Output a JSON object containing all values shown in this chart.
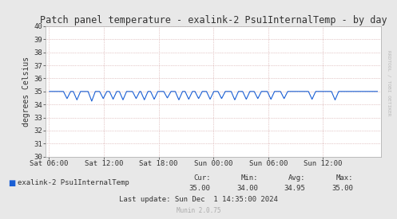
{
  "title": "Patch panel temperature - exalink-2 Psu1InternalTemp - by day",
  "ylabel": "degrees Celsius",
  "ylim": [
    30,
    40
  ],
  "yticks": [
    30,
    31,
    32,
    33,
    34,
    35,
    36,
    37,
    38,
    39,
    40
  ],
  "xlabels": [
    "Sat 06:00",
    "Sat 12:00",
    "Sat 18:00",
    "Sun 00:00",
    "Sun 06:00",
    "Sun 12:00"
  ],
  "line_color": "#1a5fd4",
  "background_color": "#e8e8e8",
  "plot_bg_color": "#ffffff",
  "grid_color_major": "#cc9999",
  "grid_color_minor": "#ddbbbb",
  "legend_label": "exalink-2 Psu1InternalTemp",
  "legend_color": "#1a5fd4",
  "cur": "35.00",
  "min": "34.00",
  "avg": "34.95",
  "max": "35.00",
  "last_update": "Sun Dec  1 14:35:00 2024",
  "munin_version": "Munin 2.0.75",
  "watermark": "RRDTOOL / TOBI OETIKER",
  "base_value": 35.0,
  "dip_positions": [
    0.055,
    0.085,
    0.13,
    0.165,
    0.195,
    0.225,
    0.265,
    0.29,
    0.32,
    0.36,
    0.395,
    0.425,
    0.455,
    0.49,
    0.525,
    0.565,
    0.6,
    0.635,
    0.675,
    0.715,
    0.8,
    0.87
  ],
  "dip_depths": [
    0.55,
    0.65,
    0.75,
    0.55,
    0.6,
    0.65,
    0.55,
    0.65,
    0.6,
    0.5,
    0.65,
    0.6,
    0.55,
    0.6,
    0.55,
    0.65,
    0.6,
    0.55,
    0.6,
    0.55,
    0.6,
    0.65
  ]
}
